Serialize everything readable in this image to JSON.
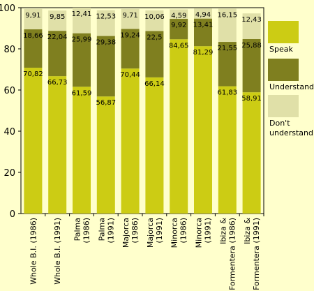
{
  "chart_data": {
    "type": "bar",
    "stacked": true,
    "categories": [
      [
        "Whole B.I. (1986)"
      ],
      [
        "Whole B.I. (1991)"
      ],
      [
        "Palma",
        "(1986)"
      ],
      [
        "Palma",
        "(1991)"
      ],
      [
        "Majorca",
        "(1986)"
      ],
      [
        "Majorca",
        "(1991)"
      ],
      [
        "Minorca",
        "(1986)"
      ],
      [
        "Minorca",
        "(1991)"
      ],
      [
        "Ibiza &",
        "Formentera (1986)"
      ],
      [
        "Ibiza &",
        "Formentera (1991)"
      ]
    ],
    "series": [
      {
        "name": "Speak",
        "color": "#cccc14",
        "values": [
          70.82,
          66.73,
          61.59,
          56.87,
          70.44,
          66.14,
          84.65,
          81.29,
          61.83,
          58.91
        ],
        "labels": [
          "70,82",
          "66,73",
          "61,59",
          "56,87",
          "70,44",
          "66,14",
          "84,65",
          "81,29",
          "61,83",
          "58,91"
        ]
      },
      {
        "name": "Understand",
        "color": "#7f7f1f",
        "values": [
          18.66,
          22.04,
          25.99,
          29.38,
          19.24,
          22.5,
          9.92,
          13.41,
          21.55,
          25.88
        ],
        "labels": [
          "18,66",
          "22,04",
          "25,99",
          "29,38",
          "19,24",
          "22,5",
          "9,92",
          "13,41",
          "21,55",
          "25,88"
        ]
      },
      {
        "name": "Don't understand",
        "legend_lines": [
          "Don't",
          "understand"
        ],
        "color": "#e0e0a8",
        "values": [
          9.91,
          9.85,
          12.41,
          12.53,
          9.71,
          10.06,
          4.59,
          4.94,
          16.15,
          12.43
        ],
        "labels": [
          "9,91",
          "9,85",
          "12,41",
          "12,53",
          "9,71",
          "10,06",
          "4,59",
          "4,94",
          "16,15",
          "12,43"
        ]
      }
    ],
    "yticks": [
      "0",
      "20",
      "40",
      "60",
      "80",
      "100"
    ],
    "ylim": [
      0,
      100
    ],
    "legend_position": "right"
  }
}
